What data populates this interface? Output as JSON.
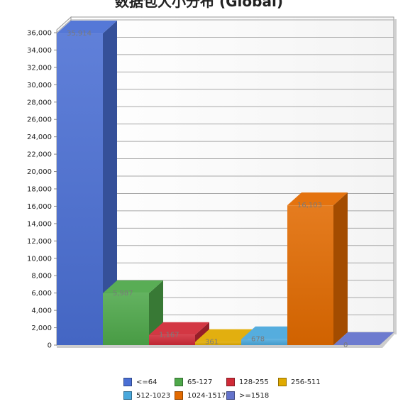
{
  "chart_data": {
    "type": "bar",
    "title": "数据包大小分布 (Global)",
    "categories": [
      "<=64",
      "65-127",
      "128-255",
      "256-511",
      "512-1023",
      "1024-1517",
      ">=1518"
    ],
    "values": [
      35914,
      5987,
      1167,
      361,
      678,
      16103,
      0
    ],
    "data_labels": [
      "35,914",
      "5,987",
      "1,167",
      "361",
      "678",
      "16,103",
      "0"
    ],
    "colors": [
      "#4a6fd4",
      "#4ea84a",
      "#d02a37",
      "#e0aa00",
      "#4aa8dc",
      "#e26a00",
      "#6473cc"
    ],
    "ylim": [
      0,
      36000
    ],
    "yticks": [
      "0",
      "2,000",
      "4,000",
      "6,000",
      "8,000",
      "10,000",
      "12,000",
      "14,000",
      "16,000",
      "18,000",
      "20,000",
      "22,000",
      "24,000",
      "26,000",
      "28,000",
      "30,000",
      "32,000",
      "34,000",
      "36,000"
    ],
    "grid": true,
    "legend_position": "bottom",
    "style": "3d"
  }
}
